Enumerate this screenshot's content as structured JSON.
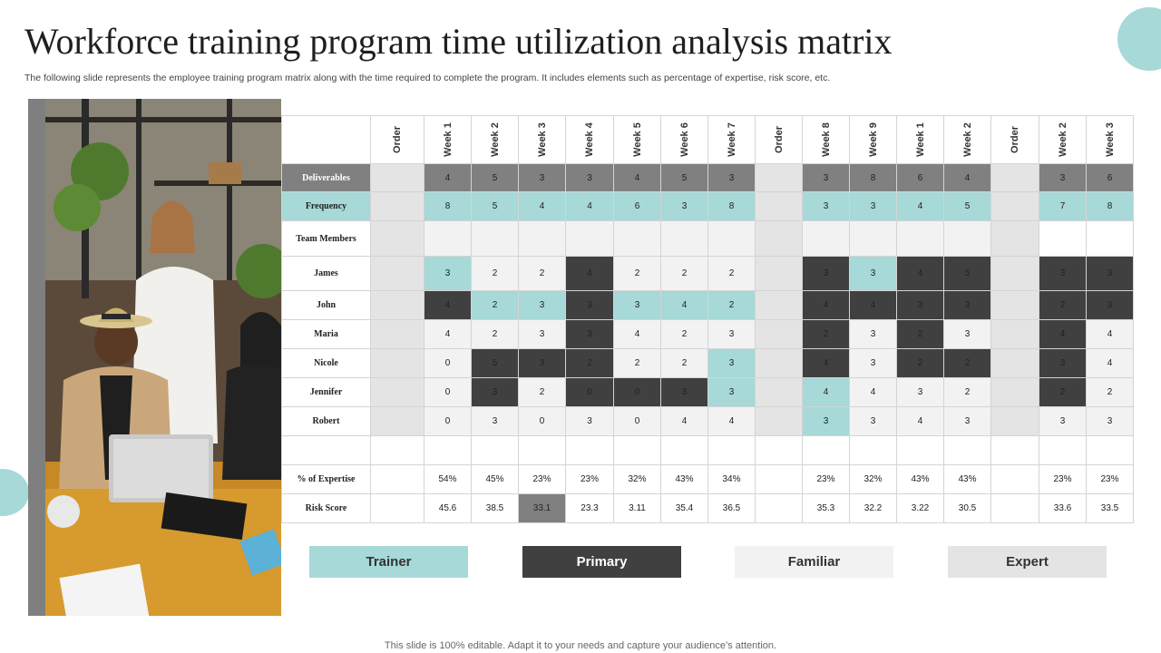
{
  "title": "Workforce training program time utilization analysis matrix",
  "subtitle": "The following slide represents the employee training program matrix along with the time required to complete the program. It includes elements such as percentage of expertise, risk score, etc.",
  "footer": "This slide is 100% editable. Adapt it to your needs and capture your audience’s attention.",
  "colors": {
    "trainer": "#a6d9d7",
    "primary": "#404040",
    "familiar": "#f2f2f2",
    "expert": "#e4e4e4",
    "header_gray": "#808080",
    "order_gray": "#e4e4e4"
  },
  "legend": [
    {
      "label": "Trainer",
      "style": "teal"
    },
    {
      "label": "Primary",
      "style": "dark"
    },
    {
      "label": "Familiar",
      "style": "light"
    },
    {
      "label": "Expert",
      "style": "expert"
    }
  ],
  "table": {
    "columns": [
      "Order",
      "Week 1",
      "Week 2",
      "Week 3",
      "Week 4",
      "Week 5",
      "Week 6",
      "Week 7",
      "Order",
      "Week 8",
      "Week 9",
      "Week 1",
      "Week 2",
      "Order",
      "Week 2",
      "Week 3"
    ],
    "rows": [
      {
        "label": "Deliverables",
        "cls": "deliv",
        "cells": [
          [
            "",
            "order"
          ],
          [
            "4",
            "gray"
          ],
          [
            "5",
            "gray"
          ],
          [
            "3",
            "gray"
          ],
          [
            "3",
            "gray"
          ],
          [
            "4",
            "gray"
          ],
          [
            "5",
            "gray"
          ],
          [
            "3",
            "gray"
          ],
          [
            "",
            "order"
          ],
          [
            "3",
            "gray"
          ],
          [
            "8",
            "gray"
          ],
          [
            "6",
            "gray"
          ],
          [
            "4",
            "gray"
          ],
          [
            "",
            "order"
          ],
          [
            "3",
            "gray"
          ],
          [
            "6",
            "gray"
          ]
        ]
      },
      {
        "label": "Frequency",
        "cls": "freq",
        "cells": [
          [
            "",
            "order"
          ],
          [
            "8",
            "teal"
          ],
          [
            "5",
            "teal"
          ],
          [
            "4",
            "teal"
          ],
          [
            "4",
            "teal"
          ],
          [
            "6",
            "teal"
          ],
          [
            "3",
            "teal"
          ],
          [
            "8",
            "teal"
          ],
          [
            "",
            "order"
          ],
          [
            "3",
            "teal"
          ],
          [
            "3",
            "teal"
          ],
          [
            "4",
            "teal"
          ],
          [
            "5",
            "teal"
          ],
          [
            "",
            "order"
          ],
          [
            "7",
            "teal"
          ],
          [
            "8",
            "teal"
          ]
        ]
      },
      {
        "label": "Team Members",
        "cls": "team",
        "cells": [
          [
            "",
            "order"
          ],
          [
            "",
            "light"
          ],
          [
            "",
            "light"
          ],
          [
            "",
            "light"
          ],
          [
            "",
            "light"
          ],
          [
            "",
            "light"
          ],
          [
            "",
            "light"
          ],
          [
            "",
            "light"
          ],
          [
            "",
            "order"
          ],
          [
            "",
            "light"
          ],
          [
            "",
            "light"
          ],
          [
            "",
            "light"
          ],
          [
            "",
            "light"
          ],
          [
            "",
            "order"
          ],
          [
            "",
            "white"
          ],
          [
            "",
            "white"
          ]
        ]
      },
      {
        "label": "James",
        "cls": "person",
        "cells": [
          [
            "",
            "order"
          ],
          [
            "3",
            "teal"
          ],
          [
            "2",
            "light"
          ],
          [
            "2",
            "light"
          ],
          [
            "4",
            "dark"
          ],
          [
            "2",
            "light"
          ],
          [
            "2",
            "light"
          ],
          [
            "2",
            "light"
          ],
          [
            "",
            "order"
          ],
          [
            "3",
            "dark"
          ],
          [
            "3",
            "teal"
          ],
          [
            "4",
            "dark"
          ],
          [
            "5",
            "dark"
          ],
          [
            "",
            "order"
          ],
          [
            "3",
            "dark"
          ],
          [
            "3",
            "dark"
          ]
        ]
      },
      {
        "label": "John",
        "cls": "person",
        "cells": [
          [
            "",
            "order"
          ],
          [
            "4",
            "dark"
          ],
          [
            "2",
            "teal"
          ],
          [
            "3",
            "teal"
          ],
          [
            "3",
            "dark"
          ],
          [
            "3",
            "teal"
          ],
          [
            "4",
            "teal"
          ],
          [
            "2",
            "teal"
          ],
          [
            "",
            "order"
          ],
          [
            "4",
            "dark"
          ],
          [
            "4",
            "dark"
          ],
          [
            "3",
            "dark"
          ],
          [
            "3",
            "dark"
          ],
          [
            "",
            "order"
          ],
          [
            "2",
            "dark"
          ],
          [
            "3",
            "dark"
          ]
        ]
      },
      {
        "label": "Maria",
        "cls": "person",
        "cells": [
          [
            "",
            "order"
          ],
          [
            "4",
            "light"
          ],
          [
            "2",
            "light"
          ],
          [
            "3",
            "light"
          ],
          [
            "3",
            "dark"
          ],
          [
            "4",
            "light"
          ],
          [
            "2",
            "light"
          ],
          [
            "3",
            "light"
          ],
          [
            "",
            "order"
          ],
          [
            "2",
            "dark"
          ],
          [
            "3",
            "light"
          ],
          [
            "2",
            "dark"
          ],
          [
            "3",
            "light"
          ],
          [
            "",
            "order"
          ],
          [
            "4",
            "dark"
          ],
          [
            "4",
            "light"
          ]
        ]
      },
      {
        "label": "Nicole",
        "cls": "person",
        "cells": [
          [
            "",
            "order"
          ],
          [
            "0",
            "light"
          ],
          [
            "5",
            "dark"
          ],
          [
            "3",
            "dark"
          ],
          [
            "2",
            "dark"
          ],
          [
            "2",
            "light"
          ],
          [
            "2",
            "light"
          ],
          [
            "3",
            "teal"
          ],
          [
            "",
            "order"
          ],
          [
            "4",
            "dark"
          ],
          [
            "3",
            "light"
          ],
          [
            "2",
            "dark"
          ],
          [
            "2",
            "dark"
          ],
          [
            "",
            "order"
          ],
          [
            "3",
            "dark"
          ],
          [
            "4",
            "light"
          ]
        ]
      },
      {
        "label": "Jennifer",
        "cls": "person",
        "cells": [
          [
            "",
            "order"
          ],
          [
            "0",
            "light"
          ],
          [
            "3",
            "dark"
          ],
          [
            "2",
            "light"
          ],
          [
            "0",
            "dark"
          ],
          [
            "0",
            "dark"
          ],
          [
            "3",
            "dark"
          ],
          [
            "3",
            "teal"
          ],
          [
            "",
            "order"
          ],
          [
            "4",
            "teal"
          ],
          [
            "4",
            "light"
          ],
          [
            "3",
            "light"
          ],
          [
            "2",
            "light"
          ],
          [
            "",
            "order"
          ],
          [
            "2",
            "dark"
          ],
          [
            "2",
            "light"
          ]
        ]
      },
      {
        "label": "Robert",
        "cls": "person",
        "cells": [
          [
            "",
            "order"
          ],
          [
            "0",
            "light"
          ],
          [
            "3",
            "light"
          ],
          [
            "0",
            "light"
          ],
          [
            "3",
            "light"
          ],
          [
            "0",
            "light"
          ],
          [
            "4",
            "light"
          ],
          [
            "4",
            "light"
          ],
          [
            "",
            "order"
          ],
          [
            "3",
            "teal"
          ],
          [
            "3",
            "light"
          ],
          [
            "4",
            "light"
          ],
          [
            "3",
            "light"
          ],
          [
            "",
            "order"
          ],
          [
            "3",
            "light"
          ],
          [
            "3",
            "light"
          ]
        ]
      },
      {
        "label": "",
        "cls": "blank",
        "cells": [
          [
            "",
            "white"
          ],
          [
            "",
            "white"
          ],
          [
            "",
            "white"
          ],
          [
            "",
            "white"
          ],
          [
            "",
            "white"
          ],
          [
            "",
            "white"
          ],
          [
            "",
            "white"
          ],
          [
            "",
            "white"
          ],
          [
            "",
            "white"
          ],
          [
            "",
            "white"
          ],
          [
            "",
            "white"
          ],
          [
            "",
            "white"
          ],
          [
            "",
            "white"
          ],
          [
            "",
            "white"
          ],
          [
            "",
            "white"
          ],
          [
            "",
            "white"
          ]
        ]
      },
      {
        "label": "% of Expertise",
        "cls": "metric",
        "cells": [
          [
            "",
            "white"
          ],
          [
            "54%",
            "white"
          ],
          [
            "45%",
            "white"
          ],
          [
            "23%",
            "white"
          ],
          [
            "23%",
            "white"
          ],
          [
            "32%",
            "white"
          ],
          [
            "43%",
            "white"
          ],
          [
            "34%",
            "white"
          ],
          [
            "",
            "white"
          ],
          [
            "23%",
            "white"
          ],
          [
            "32%",
            "white"
          ],
          [
            "43%",
            "white"
          ],
          [
            "43%",
            "white"
          ],
          [
            "",
            "white"
          ],
          [
            "23%",
            "white"
          ],
          [
            "23%",
            "white"
          ]
        ]
      },
      {
        "label": "Risk Score",
        "cls": "metric",
        "cells": [
          [
            "",
            "white"
          ],
          [
            "45.6",
            "white"
          ],
          [
            "38.5",
            "white"
          ],
          [
            "33.1",
            "gray"
          ],
          [
            "23.3",
            "white"
          ],
          [
            "3.11",
            "white"
          ],
          [
            "35.4",
            "white"
          ],
          [
            "36.5",
            "white"
          ],
          [
            "",
            "white"
          ],
          [
            "35.3",
            "white"
          ],
          [
            "32.2",
            "white"
          ],
          [
            "3.22",
            "white"
          ],
          [
            "30.5",
            "white"
          ],
          [
            "",
            "white"
          ],
          [
            "33.6",
            "white"
          ],
          [
            "33.5",
            "white"
          ]
        ]
      }
    ]
  }
}
